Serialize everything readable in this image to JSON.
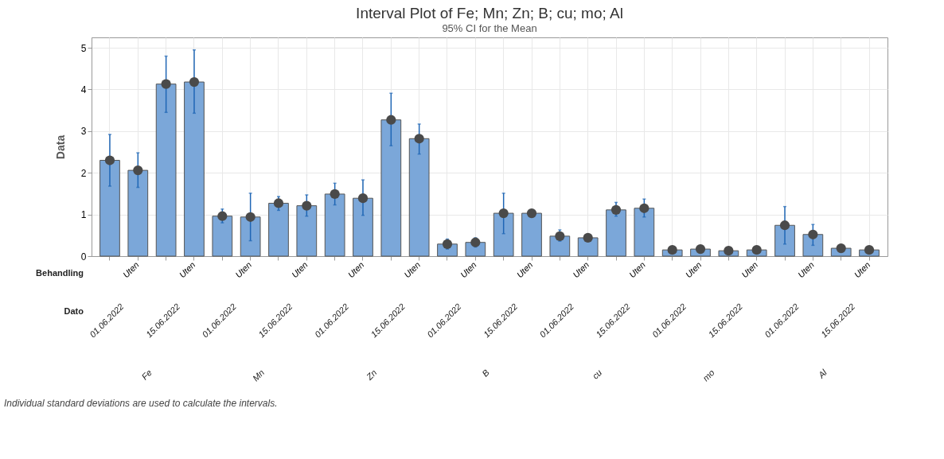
{
  "chart_data": {
    "type": "bar",
    "title": "Interval Plot of Fe; Mn; Zn; B; cu; mo; Al",
    "subtitle": "95% CI for the Mean",
    "ylabel": "Data",
    "categories": [
      null,
      "Uten",
      null,
      "Uten",
      null,
      "Uten",
      null,
      "Uten",
      null,
      "Uten",
      null,
      "Uten",
      null,
      "Uten",
      null,
      "Uten",
      null,
      "Uten",
      null,
      "Uten",
      null,
      "Uten",
      null,
      "Uten",
      null,
      "Uten",
      null,
      "Uten"
    ],
    "series": [
      {
        "color": "#7ba7d9",
        "values": [
          2.3,
          2.06,
          4.13,
          4.18,
          0.96,
          0.94,
          1.27,
          1.21,
          1.49,
          1.39,
          3.27,
          2.82,
          0.29,
          0.33,
          1.03,
          1.03,
          0.48,
          0.44,
          1.11,
          1.15,
          0.15,
          0.17,
          0.13,
          0.15,
          0.74,
          0.52,
          0.19,
          0.15
        ],
        "errors": [
          [
            1.68,
            2.92
          ],
          [
            1.65,
            2.48
          ],
          [
            3.45,
            4.8
          ],
          [
            3.43,
            4.95
          ],
          [
            0.8,
            1.13
          ],
          [
            0.37,
            1.51
          ],
          [
            1.1,
            1.43
          ],
          [
            0.96,
            1.47
          ],
          [
            1.23,
            1.75
          ],
          [
            0.98,
            1.83
          ],
          [
            2.65,
            3.91
          ],
          [
            2.45,
            3.17
          ],
          [
            0.17,
            0.41
          ],
          [
            0.22,
            0.44
          ],
          [
            0.54,
            1.51
          ],
          null,
          [
            0.36,
            0.63
          ],
          null,
          [
            0.96,
            1.29
          ],
          [
            0.94,
            1.37
          ],
          null,
          null,
          null,
          null,
          [
            0.29,
            1.19
          ],
          [
            0.26,
            0.76
          ],
          null,
          null
        ]
      },
      {
        "type": "scatter",
        "color": "#4a4a4a",
        "values": [
          2.3,
          2.06,
          4.13,
          4.18,
          0.96,
          0.94,
          1.27,
          1.21,
          1.49,
          1.39,
          3.27,
          2.82,
          0.29,
          0.33,
          1.03,
          1.03,
          0.48,
          0.44,
          1.11,
          1.15,
          0.15,
          0.17,
          0.13,
          0.15,
          0.74,
          0.52,
          0.19,
          0.15
        ]
      }
    ],
    "marker": "circle",
    "ylim": [
      0,
      5.25
    ],
    "yticks": [
      0,
      1,
      2,
      3,
      4,
      5
    ],
    "grid": true,
    "annotations": [
      "Behandling",
      "Dato",
      "01.06.2022",
      "15.06.2022",
      "01.06.2022",
      "15.06.2022",
      "01.06.2022",
      "15.06.2022",
      "01.06.2022",
      "15.06.2022",
      "01.06.2022",
      "15.06.2022",
      "01.06.2022",
      "15.06.2022",
      "01.06.2022",
      "15.06.2022",
      "Fe",
      "Mn",
      "Zn",
      "B",
      "cu",
      "mo",
      "Al",
      "Individual standard deviations are used to calculate the intervals."
    ]
  }
}
